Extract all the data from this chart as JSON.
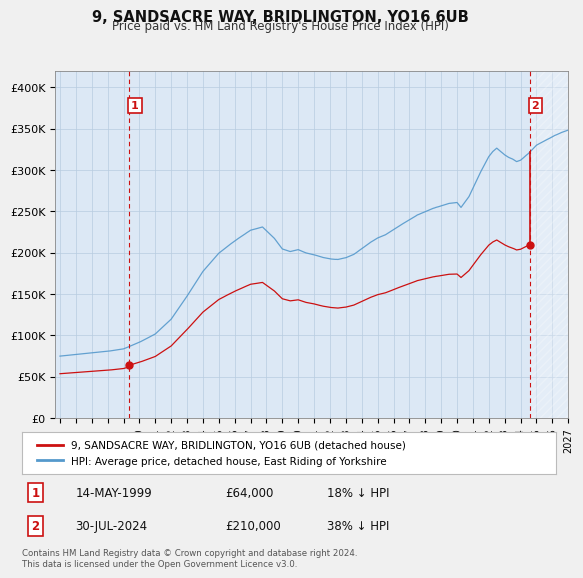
{
  "title": "9, SANDSACRE WAY, BRIDLINGTON, YO16 6UB",
  "subtitle": "Price paid vs. HM Land Registry's House Price Index (HPI)",
  "ylim": [
    0,
    420000
  ],
  "yticks": [
    0,
    50000,
    100000,
    150000,
    200000,
    250000,
    300000,
    350000,
    400000
  ],
  "ytick_labels": [
    "£0",
    "£50K",
    "£100K",
    "£150K",
    "£200K",
    "£250K",
    "£300K",
    "£350K",
    "£400K"
  ],
  "hpi_color": "#5599cc",
  "price_color": "#cc1111",
  "background_color": "#f0f0f0",
  "plot_bg_color": "#dce8f5",
  "legend_label_price": "9, SANDSACRE WAY, BRIDLINGTON, YO16 6UB (detached house)",
  "legend_label_hpi": "HPI: Average price, detached house, East Riding of Yorkshire",
  "sale1_date": "14-MAY-1999",
  "sale1_year": 1999.37,
  "sale1_price": 64000,
  "sale1_label": "1",
  "sale1_note": "18% ↓ HPI",
  "sale2_date": "30-JUL-2024",
  "sale2_year": 2024.58,
  "sale2_price": 210000,
  "sale2_label": "2",
  "sale2_note": "38% ↓ HPI",
  "footnote": "Contains HM Land Registry data © Crown copyright and database right 2024.\nThis data is licensed under the Open Government Licence v3.0.",
  "x_start_year": 1995,
  "x_end_year": 2027
}
